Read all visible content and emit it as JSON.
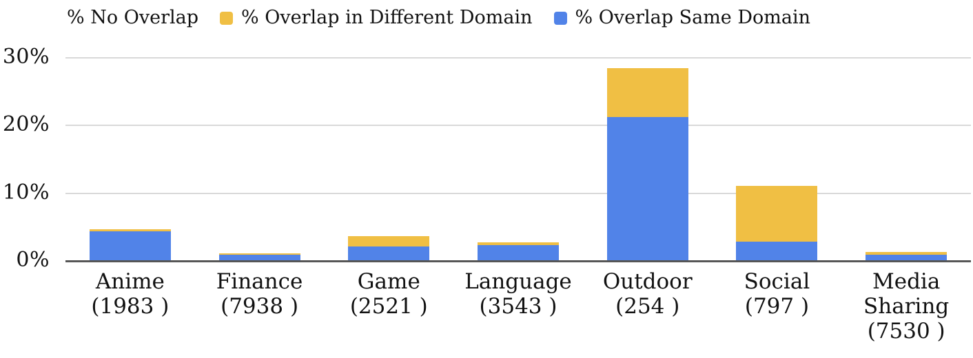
{
  "chart_data": {
    "type": "bar",
    "stacked": true,
    "title": "",
    "xlabel": "",
    "ylabel": "",
    "ylim": [
      0,
      30
    ],
    "grid": true,
    "legend_position": "top",
    "legend": [
      {
        "label": "% No Overlap",
        "swatch_color": null
      },
      {
        "label": "% Overlap in Different Domain",
        "swatch_color": "#F0BF44"
      },
      {
        "label": "% Overlap Same Domain",
        "swatch_color": "#5183E8"
      }
    ],
    "yticks": [
      {
        "value": 0,
        "label": "0%"
      },
      {
        "value": 10,
        "label": "10%"
      },
      {
        "value": 20,
        "label": "20%"
      },
      {
        "value": 30,
        "label": "30%"
      }
    ],
    "categories": [
      {
        "name": "Anime",
        "count_label": "(1983 )"
      },
      {
        "name": "Finance",
        "count_label": "(7938 )"
      },
      {
        "name": "Game",
        "count_label": "(2521 )"
      },
      {
        "name": "Language",
        "count_label": "(3543 )"
      },
      {
        "name": "Outdoor",
        "count_label": "(254 )"
      },
      {
        "name": "Social",
        "count_label": "(797 )"
      },
      {
        "name": "Media Sharing",
        "count_label": "(7530 )"
      }
    ],
    "series": [
      {
        "name": "% Overlap Same Domain",
        "color": "#5183E8",
        "values": [
          4.4,
          0.9,
          2.1,
          2.3,
          21.3,
          2.8,
          0.9
        ]
      },
      {
        "name": "% Overlap in Different Domain",
        "color": "#F0BF44",
        "values": [
          0.3,
          0.2,
          1.6,
          0.4,
          7.2,
          8.3,
          0.4
        ]
      }
    ],
    "colors": {
      "axis": "#565656",
      "gridline": "#D9D9D9",
      "text": "#111111"
    }
  }
}
